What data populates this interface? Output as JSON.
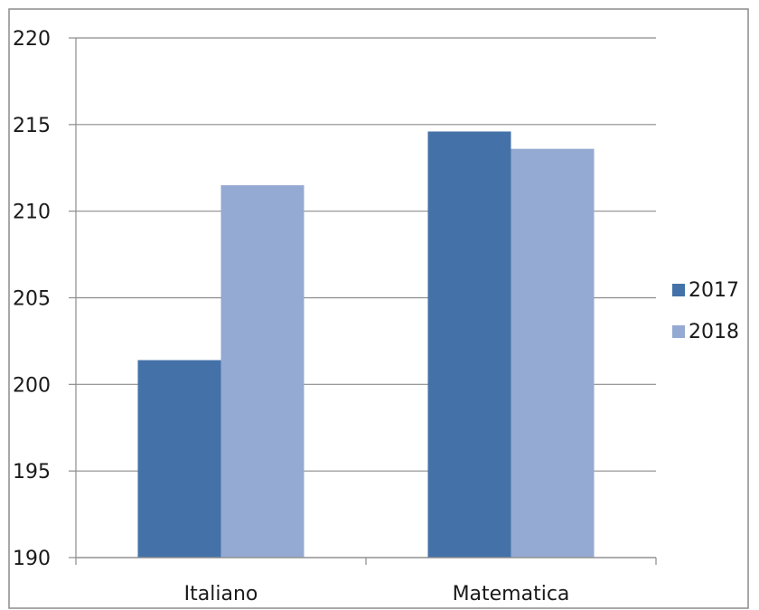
{
  "chart_data": {
    "type": "bar",
    "categories": [
      "Italiano",
      "Matematica"
    ],
    "series": [
      {
        "name": "2017",
        "values": [
          201.4,
          214.6
        ],
        "color": "#4472A8"
      },
      {
        "name": "2018",
        "values": [
          211.5,
          213.6
        ],
        "color": "#95AAD2"
      }
    ],
    "ylim": [
      190,
      220
    ],
    "yticks": [
      190,
      195,
      200,
      205,
      210,
      215,
      220
    ],
    "grid": true,
    "legend": "right",
    "title": "",
    "xlabel": "",
    "ylabel": ""
  }
}
